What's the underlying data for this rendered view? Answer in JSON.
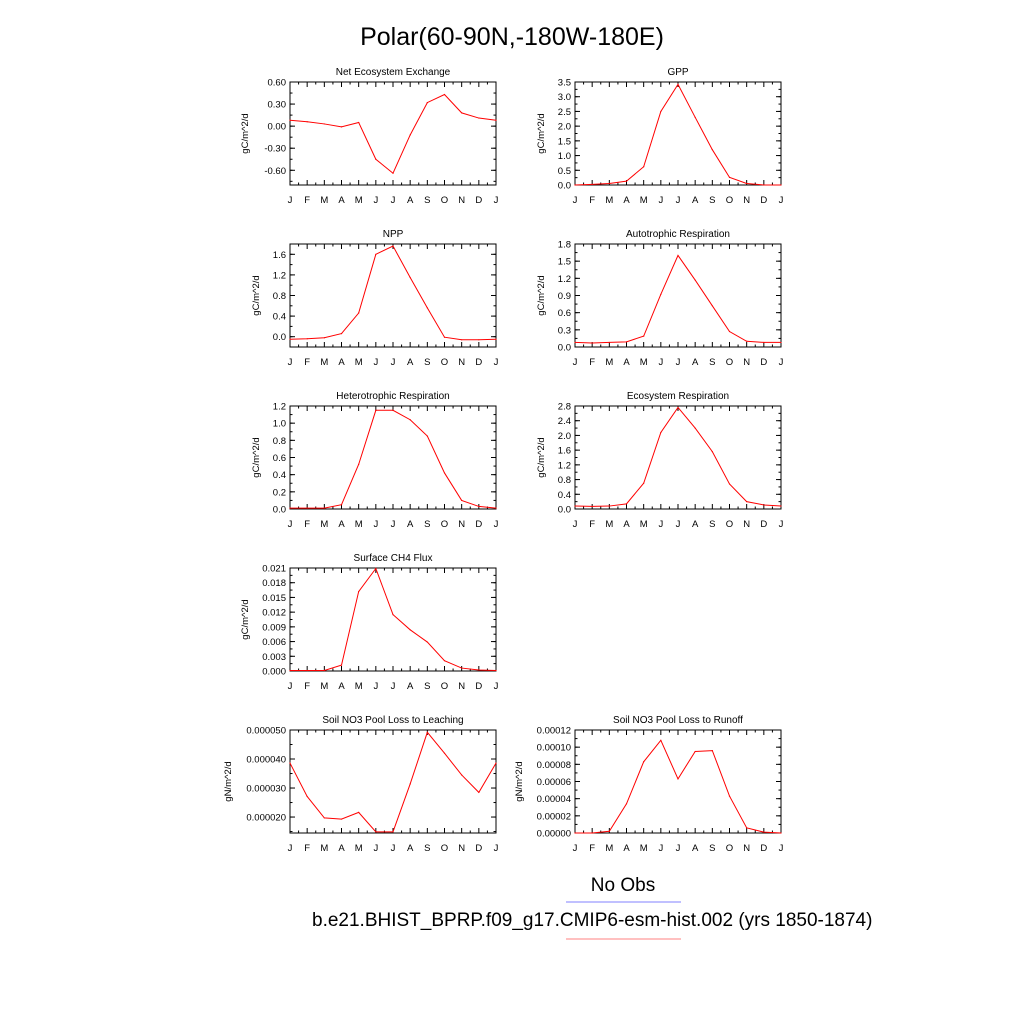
{
  "figure": {
    "title": "Polar(60-90N,-180W-180E)",
    "line_color": "#ff0000",
    "legend": [
      {
        "label": "No Obs",
        "color": "#8080ff"
      },
      {
        "label": "b.e21.BHIST_BPRP.f09_g17.CMIP6-esm-hist.002 (yrs 1850-1874)",
        "color": "#ff8080"
      }
    ]
  },
  "chart_data": [
    {
      "type": "line",
      "title": "Net Ecosystem Exchange",
      "ylabel": "gC/m^2/d",
      "categories": [
        "J",
        "F",
        "M",
        "A",
        "M",
        "J",
        "J",
        "A",
        "S",
        "O",
        "N",
        "D",
        "J"
      ],
      "ylim": [
        -0.8,
        0.6
      ],
      "yticks": [
        -0.6,
        -0.3,
        0.0,
        0.3,
        0.6
      ],
      "ytick_labels": [
        "-0.60",
        "-0.30",
        "0.00",
        "0.30",
        "0.60"
      ],
      "series": [
        {
          "values": [
            0.08,
            0.06,
            0.03,
            -0.01,
            0.05,
            -0.45,
            -0.64,
            -0.12,
            0.32,
            0.43,
            0.18,
            0.11,
            0.08
          ]
        }
      ]
    },
    {
      "type": "line",
      "title": "GPP",
      "ylabel": "gC/m^2/d",
      "categories": [
        "J",
        "F",
        "M",
        "A",
        "M",
        "J",
        "J",
        "A",
        "S",
        "O",
        "N",
        "D",
        "J"
      ],
      "ylim": [
        0.0,
        3.5
      ],
      "yticks": [
        0.0,
        0.5,
        1.0,
        1.5,
        2.0,
        2.5,
        3.0,
        3.5
      ],
      "ytick_labels": [
        "0.0",
        "0.5",
        "1.0",
        "1.5",
        "2.0",
        "2.5",
        "3.0",
        "3.5"
      ],
      "series": [
        {
          "values": [
            0.0,
            0.02,
            0.05,
            0.13,
            0.62,
            2.5,
            3.42,
            2.3,
            1.2,
            0.26,
            0.05,
            0.0,
            0.0
          ]
        }
      ]
    },
    {
      "type": "line",
      "title": "NPP",
      "ylabel": "gC/m^2/d",
      "categories": [
        "J",
        "F",
        "M",
        "A",
        "M",
        "J",
        "J",
        "A",
        "S",
        "O",
        "N",
        "D",
        "J"
      ],
      "ylim": [
        -0.2,
        1.8
      ],
      "yticks": [
        0.0,
        0.4,
        0.8,
        1.2,
        1.6
      ],
      "ytick_labels": [
        "0.0",
        "0.4",
        "0.8",
        "1.2",
        "1.6"
      ],
      "series": [
        {
          "values": [
            -0.05,
            -0.04,
            -0.02,
            0.06,
            0.46,
            1.6,
            1.76,
            1.15,
            0.56,
            -0.01,
            -0.06,
            -0.06,
            -0.05
          ]
        }
      ]
    },
    {
      "type": "line",
      "title": "Autotrophic Respiration",
      "ylabel": "gC/m^2/d",
      "categories": [
        "J",
        "F",
        "M",
        "A",
        "M",
        "J",
        "J",
        "A",
        "S",
        "O",
        "N",
        "D",
        "J"
      ],
      "ylim": [
        0.0,
        1.8
      ],
      "yticks": [
        0.0,
        0.3,
        0.6,
        0.9,
        1.2,
        1.5,
        1.8
      ],
      "ytick_labels": [
        "0.0",
        "0.3",
        "0.6",
        "0.9",
        "1.2",
        "1.5",
        "1.8"
      ],
      "series": [
        {
          "values": [
            0.08,
            0.07,
            0.08,
            0.09,
            0.19,
            0.92,
            1.6,
            1.17,
            0.72,
            0.27,
            0.1,
            0.08,
            0.08
          ]
        }
      ]
    },
    {
      "type": "line",
      "title": "Heterotrophic Respiration",
      "ylabel": "gC/m^2/d",
      "categories": [
        "J",
        "F",
        "M",
        "A",
        "M",
        "J",
        "J",
        "A",
        "S",
        "O",
        "N",
        "D",
        "J"
      ],
      "ylim": [
        0.0,
        1.2
      ],
      "yticks": [
        0.0,
        0.2,
        0.4,
        0.6,
        0.8,
        1.0,
        1.2
      ],
      "ytick_labels": [
        "0.0",
        "0.2",
        "0.4",
        "0.6",
        "0.8",
        "1.0",
        "1.2"
      ],
      "series": [
        {
          "values": [
            0.01,
            0.01,
            0.01,
            0.05,
            0.52,
            1.15,
            1.15,
            1.04,
            0.85,
            0.42,
            0.1,
            0.03,
            0.01
          ]
        }
      ]
    },
    {
      "type": "line",
      "title": "Ecosystem Respiration",
      "ylabel": "gC/m^2/d",
      "categories": [
        "J",
        "F",
        "M",
        "A",
        "M",
        "J",
        "J",
        "A",
        "S",
        "O",
        "N",
        "D",
        "J"
      ],
      "ylim": [
        0.0,
        2.8
      ],
      "yticks": [
        0.0,
        0.4,
        0.8,
        1.2,
        1.6,
        2.0,
        2.4,
        2.8
      ],
      "ytick_labels": [
        "0.0",
        "0.4",
        "0.8",
        "1.2",
        "1.6",
        "2.0",
        "2.4",
        "2.8"
      ],
      "series": [
        {
          "values": [
            0.08,
            0.07,
            0.08,
            0.14,
            0.7,
            2.08,
            2.76,
            2.2,
            1.56,
            0.68,
            0.2,
            0.11,
            0.08
          ]
        }
      ]
    },
    {
      "type": "line",
      "title": "Surface CH4 Flux",
      "ylabel": "gC/m^2/d",
      "categories": [
        "J",
        "F",
        "M",
        "A",
        "M",
        "J",
        "J",
        "A",
        "S",
        "O",
        "N",
        "D",
        "J"
      ],
      "ylim": [
        0.0,
        0.021
      ],
      "yticks": [
        0.0,
        0.003,
        0.006,
        0.009,
        0.012,
        0.015,
        0.018,
        0.021
      ],
      "ytick_labels": [
        "0.000",
        "0.003",
        "0.006",
        "0.009",
        "0.012",
        "0.015",
        "0.018",
        "0.021"
      ],
      "series": [
        {
          "values": [
            0.0001,
            0.0001,
            0.0001,
            0.0012,
            0.0162,
            0.0209,
            0.0115,
            0.0084,
            0.0059,
            0.0021,
            0.0006,
            0.0002,
            0.0001
          ]
        }
      ]
    },
    {
      "type": "line",
      "title": "Soil NO3 Pool Loss to Leaching",
      "ylabel": "gN/m^2/d",
      "categories": [
        "J",
        "F",
        "M",
        "A",
        "M",
        "J",
        "J",
        "A",
        "S",
        "O",
        "N",
        "D",
        "J"
      ],
      "ylim": [
        1.45e-05,
        5e-05
      ],
      "yticks": [
        2e-05,
        3e-05,
        4e-05,
        5e-05
      ],
      "ytick_labels": [
        "0.000020",
        "0.000030",
        "0.000040",
        "0.000050"
      ],
      "series": [
        {
          "values": [
            3.86e-05,
            2.71e-05,
            1.97e-05,
            1.93e-05,
            2.16e-05,
            1.49e-05,
            1.49e-05,
            3.14e-05,
            4.92e-05,
            4.2e-05,
            3.45e-05,
            2.85e-05,
            3.86e-05
          ]
        }
      ]
    },
    {
      "type": "line",
      "title": "Soil NO3 Pool Loss to Runoff",
      "ylabel": "gN/m^2/d",
      "categories": [
        "J",
        "F",
        "M",
        "A",
        "M",
        "J",
        "J",
        "A",
        "S",
        "O",
        "N",
        "D",
        "J"
      ],
      "ylim": [
        0.0,
        0.00012
      ],
      "yticks": [
        0.0,
        2e-05,
        4e-05,
        6e-05,
        8e-05,
        0.0001,
        0.00012
      ],
      "ytick_labels": [
        "0.00000",
        "0.00002",
        "0.00004",
        "0.00006",
        "0.00008",
        "0.00010",
        "0.00012"
      ],
      "series": [
        {
          "values": [
            0.0,
            0.0,
            2e-06,
            3.4e-05,
            8.3e-05,
            0.000108,
            6.3e-05,
            9.5e-05,
            9.6e-05,
            4.3e-05,
            6e-06,
            1e-06,
            0.0
          ]
        }
      ]
    }
  ]
}
